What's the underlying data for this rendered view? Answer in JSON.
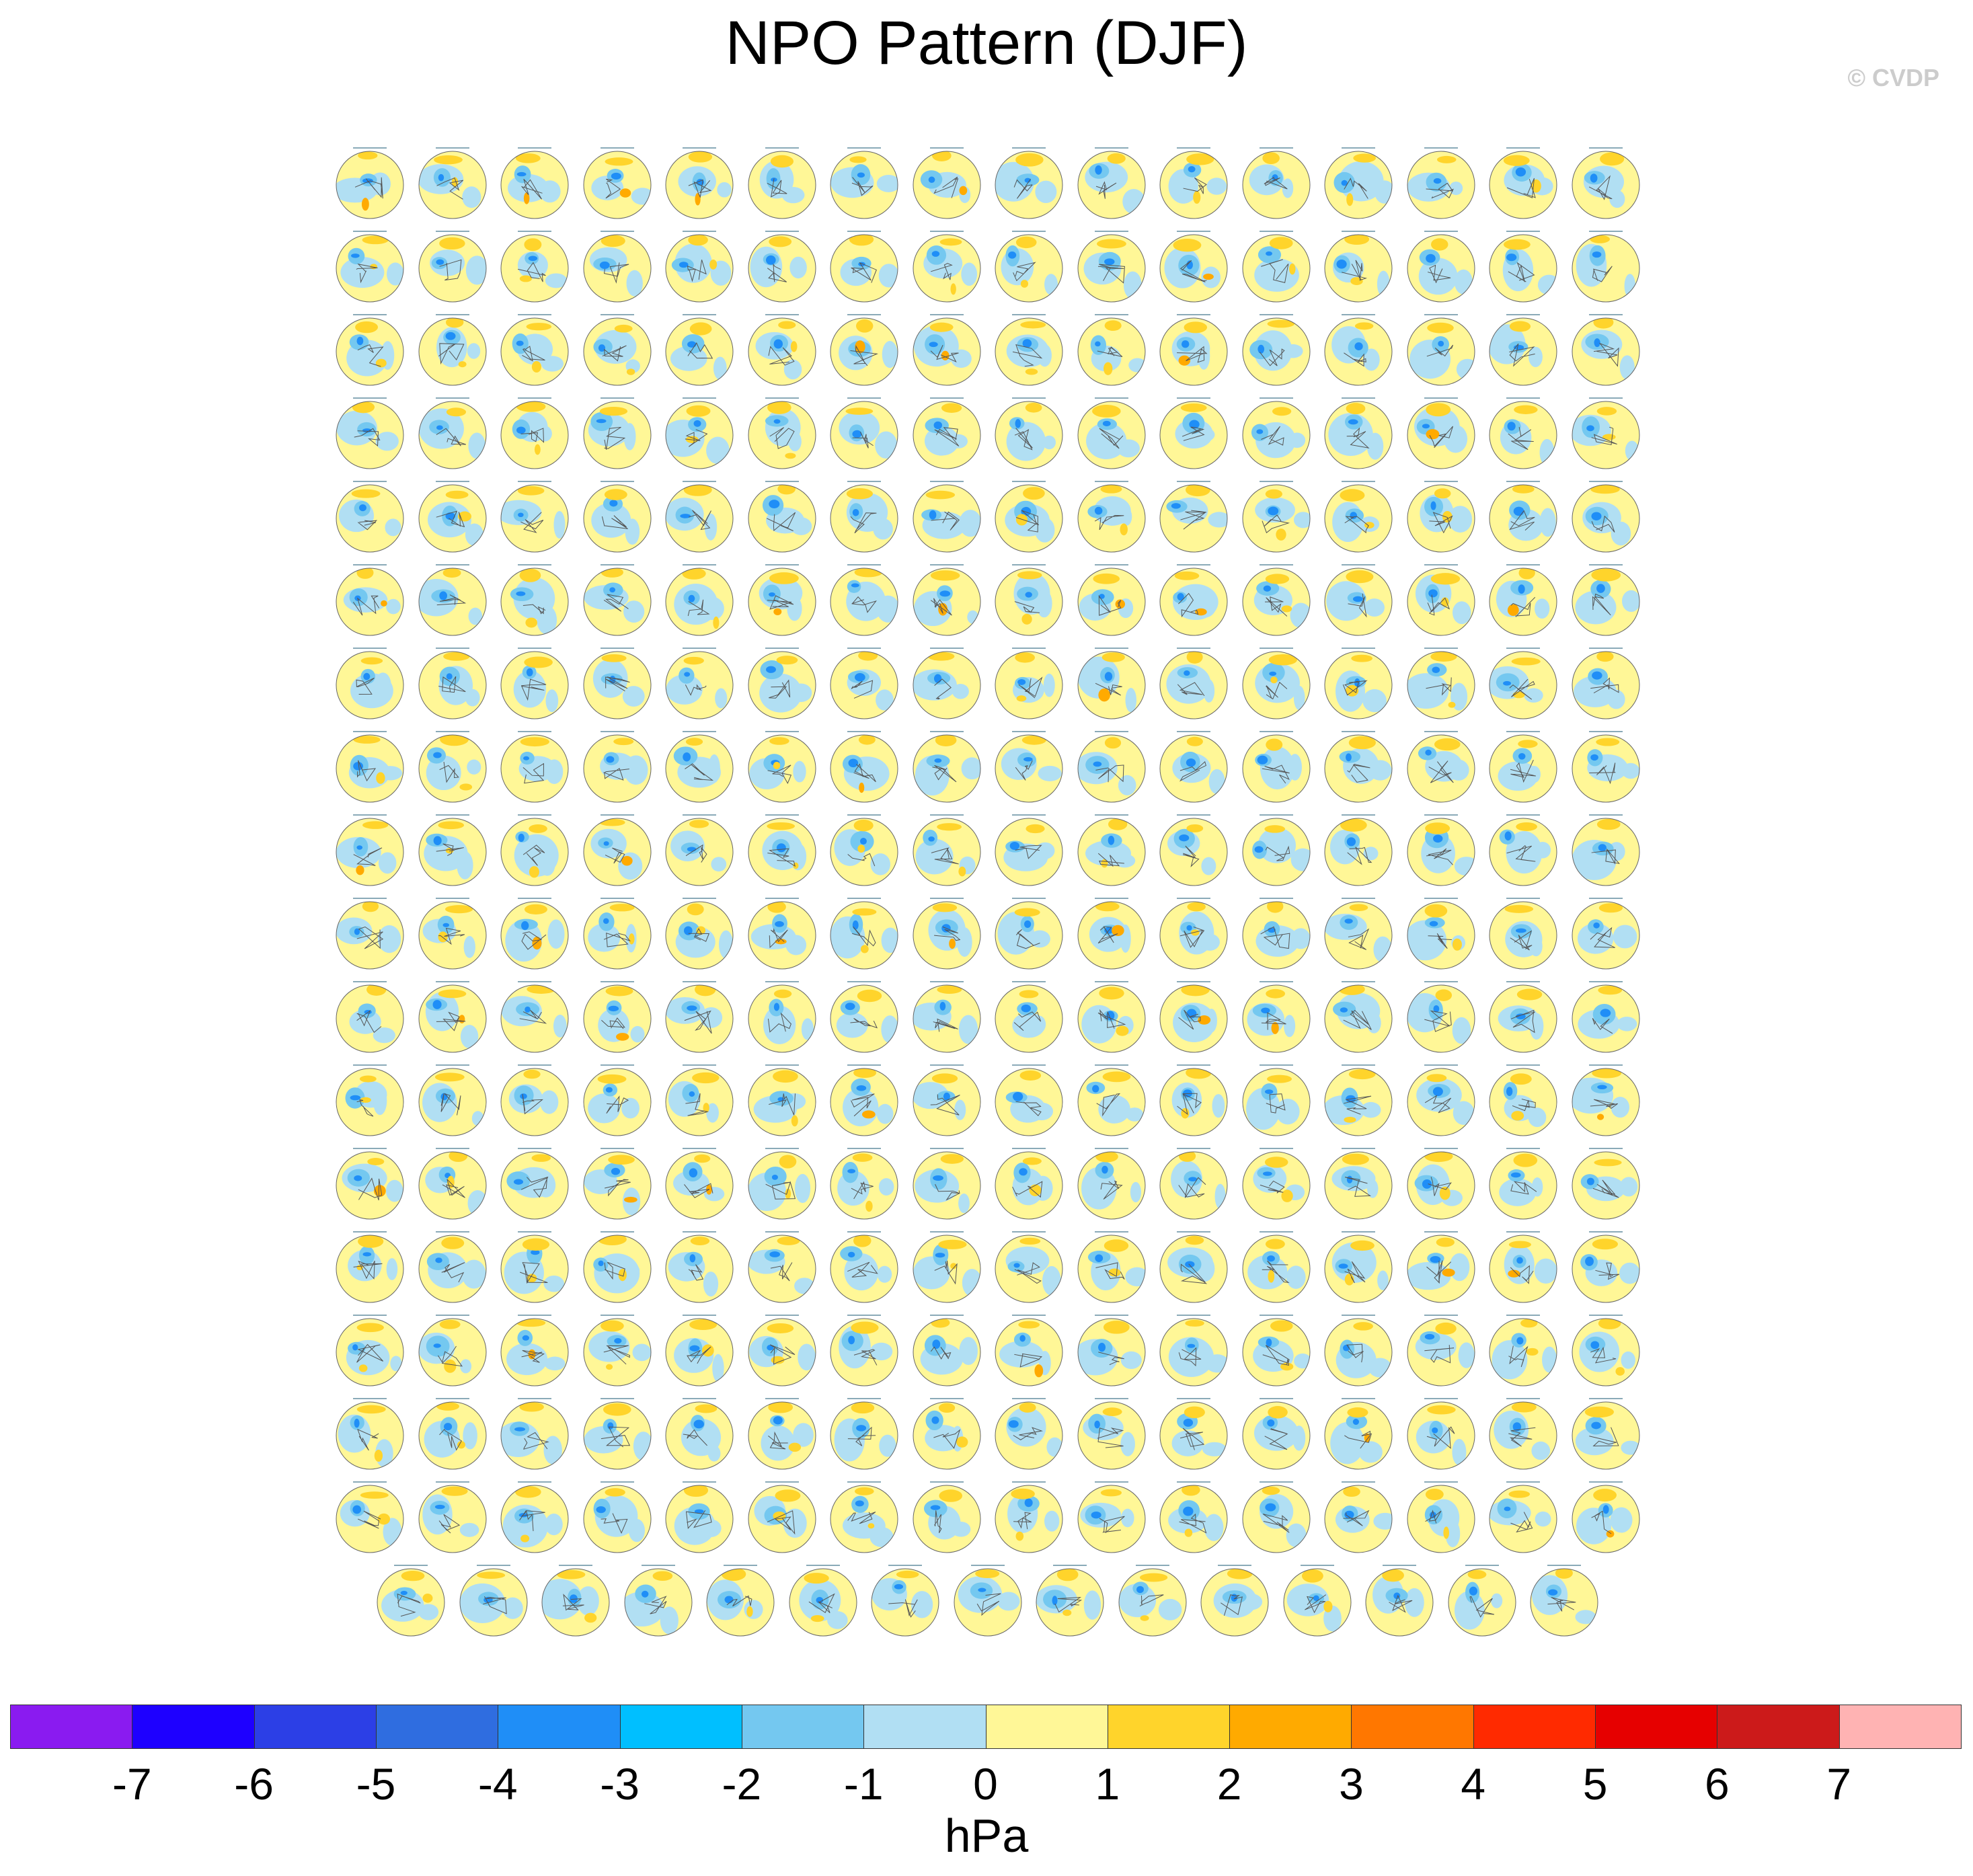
{
  "title": "NPO Pattern (DJF)",
  "copyright": "© CVDP",
  "colorbar": {
    "units": "hPa",
    "labels": [
      "-7",
      "-6",
      "-5",
      "-4",
      "-3",
      "-2",
      "-1",
      "0",
      "1",
      "2",
      "3",
      "4",
      "5",
      "6",
      "7"
    ],
    "colors": [
      "#8a1bf0",
      "#1e00ff",
      "#2c3fe6",
      "#2f6de0",
      "#1f8ef7",
      "#00bfff",
      "#74c8f0",
      "#b1dff3",
      "#fff797",
      "#ffd42b",
      "#ffaa00",
      "#ff7700",
      "#ff2a00",
      "#e60000",
      "#cc1a1a",
      "#ffb3b3"
    ]
  },
  "chart_data": {
    "type": "heatmap",
    "title": "NPO Pattern (DJF)",
    "description_units": "hPa",
    "panel_grid": {
      "full_rows": 17,
      "columns": 16,
      "last_row_panels": 15,
      "total_panels": 287
    },
    "color_levels": [
      -7,
      -6,
      -5,
      -4,
      -3,
      -2,
      -1,
      0,
      1,
      2,
      3,
      4,
      5,
      6,
      7
    ],
    "value_range": [
      -7,
      7
    ]
  }
}
